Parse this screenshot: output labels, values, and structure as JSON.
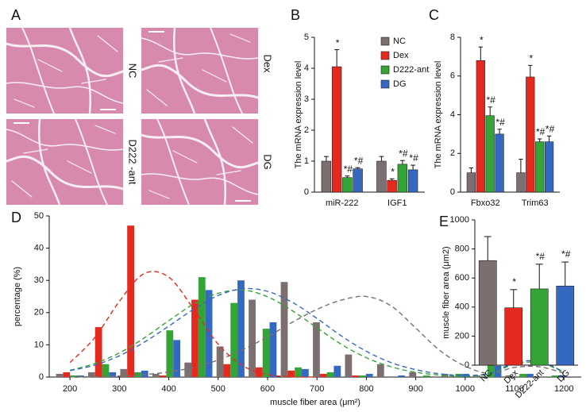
{
  "panel_a": {
    "panel": "A",
    "labels": [
      "NC",
      "Dex",
      "D222 -ant",
      "DG"
    ]
  },
  "chart_data": [
    {
      "type": "grouped_bar",
      "panel": "B",
      "y_label": "The mRNA expression level",
      "categories": [
        "miR-222",
        "IGF1"
      ],
      "ylim": [
        0,
        5
      ],
      "yticks": [
        0,
        1,
        2,
        3,
        4,
        5
      ],
      "legend": "top-right",
      "series": [
        {
          "name": "NC",
          "color": "#7b6f6f",
          "values": [
            1.0,
            1.0
          ],
          "errors": [
            0.15,
            0.15
          ]
        },
        {
          "name": "Dex",
          "color": "#e42a1f",
          "values": [
            4.05,
            0.38
          ],
          "errors": [
            0.55,
            0.05
          ],
          "markers": [
            "*",
            "*"
          ]
        },
        {
          "name": "D222-ant",
          "color": "#35a437",
          "values": [
            0.47,
            0.9
          ],
          "errors": [
            0.05,
            0.12
          ],
          "markers": [
            "*#",
            "*#"
          ]
        },
        {
          "name": "DG",
          "color": "#3568c0",
          "values": [
            0.75,
            0.72
          ],
          "errors": [
            0.04,
            0.15
          ],
          "markers": [
            "*#",
            "*#"
          ]
        }
      ]
    },
    {
      "type": "grouped_bar",
      "panel": "C",
      "y_label": "The mRNA expression level",
      "categories": [
        "Fbxo32",
        "Trim63"
      ],
      "ylim": [
        0,
        8
      ],
      "yticks": [
        0,
        2,
        4,
        6,
        8
      ],
      "legend": false,
      "series": [
        {
          "name": "NC",
          "color": "#7b6f6f",
          "values": [
            1.0,
            1.0
          ],
          "errors": [
            0.25,
            0.7
          ]
        },
        {
          "name": "Dex",
          "color": "#e42a1f",
          "values": [
            6.8,
            5.95
          ],
          "errors": [
            0.7,
            0.6
          ],
          "markers": [
            "*",
            "*"
          ]
        },
        {
          "name": "D222-ant",
          "color": "#35a437",
          "values": [
            3.95,
            2.6
          ],
          "errors": [
            0.45,
            0.15
          ],
          "markers": [
            "*#",
            "*#"
          ]
        },
        {
          "name": "DG",
          "color": "#3568c0",
          "values": [
            3.0,
            2.6
          ],
          "errors": [
            0.25,
            0.3
          ],
          "markers": [
            "*#",
            "*#"
          ]
        }
      ]
    },
    {
      "type": "grouped_histogram",
      "panel": "D",
      "y_label": "percentage (%)",
      "x_label": "muscle fiber area (μm²)",
      "x": [
        200,
        265,
        330,
        395,
        460,
        525,
        590,
        655,
        720,
        785,
        850,
        915,
        980,
        1045,
        1110,
        1175
      ],
      "xlim": [
        158,
        1235
      ],
      "xticks": [
        200,
        300,
        400,
        500,
        600,
        700,
        800,
        900,
        1000,
        1100,
        1200
      ],
      "ylim": [
        0,
        50
      ],
      "yticks": [
        0,
        10,
        20,
        30,
        40,
        50
      ],
      "legend": false,
      "fit_x": [
        200,
        250,
        300,
        350,
        400,
        450,
        500,
        550,
        600,
        650,
        700,
        750,
        800,
        850,
        900,
        950,
        1000,
        1050,
        1100,
        1150,
        1200
      ],
      "series": [
        {
          "name": "NC",
          "color": "#7b6f6f",
          "values": [
            1,
            1.5,
            2.5,
            1,
            4.5,
            9.5,
            24,
            29.5,
            17,
            7,
            4,
            1.5,
            1,
            0.5,
            0.5,
            0
          ],
          "fit": [
            0.05,
            0.13,
            0.33,
            0.75,
            1.6,
            3,
            5.3,
            8.5,
            12.5,
            17,
            21,
            23.9,
            25,
            22.1,
            15.2,
            8.1,
            3.4,
            1.1,
            3,
            3.2,
            1.2
          ]
        },
        {
          "name": "Dex",
          "color": "#e42a1f",
          "values": [
            1.5,
            15.5,
            47,
            0.5,
            24,
            4,
            3,
            2,
            1,
            0.5,
            0,
            0,
            0,
            0,
            0,
            0
          ],
          "fit": [
            4.5,
            12.2,
            23.5,
            32.1,
            31,
            21.2,
            10.2,
            3.5,
            0.8,
            0.1,
            0,
            null,
            null,
            null,
            null,
            null,
            null,
            null,
            null,
            null,
            null
          ]
        },
        {
          "name": "D222-ant",
          "color": "#35a437",
          "values": [
            0.5,
            4,
            1.5,
            14.5,
            31,
            23,
            15,
            3,
            1.5,
            0.5,
            0,
            0.5,
            1,
            4,
            1,
            0.5
          ],
          "fit": [
            2.1,
            4.2,
            7.5,
            12.1,
            17.5,
            22.6,
            26,
            27,
            24.9,
            20.6,
            15.3,
            10.1,
            6,
            3.2,
            1.5,
            0.6,
            0.3,
            1,
            4,
            4.5,
            1.5
          ]
        },
        {
          "name": "DG",
          "color": "#3568c0",
          "values": [
            0.5,
            1.5,
            2,
            11.5,
            27,
            30,
            17,
            2.5,
            3.5,
            1,
            0.5,
            0,
            1,
            3.5,
            1,
            0.5
          ],
          "fit": [
            2,
            3.7,
            6.6,
            10.8,
            15.8,
            21,
            25.3,
            27.4,
            26.6,
            23.2,
            18.2,
            12.7,
            8,
            4.5,
            2.3,
            1,
            0.5,
            1.2,
            4.4,
            4.9,
            1.6
          ]
        }
      ]
    },
    {
      "type": "bar",
      "panel": "E",
      "y_label": "muscle fiber area (μm2)",
      "categories": [
        "NC",
        "Dex",
        "D222-ant",
        "DG"
      ],
      "values": [
        720,
        395,
        525,
        545
      ],
      "errors": [
        165,
        125,
        170,
        165
      ],
      "markers": [
        null,
        "*",
        "*#",
        "*#"
      ],
      "colors": [
        "#7b6f6f",
        "#e42a1f",
        "#35a437",
        "#3568c0"
      ],
      "ylim": [
        0,
        1000
      ],
      "yticks": [
        0,
        200,
        400,
        600,
        800,
        1000
      ]
    }
  ]
}
